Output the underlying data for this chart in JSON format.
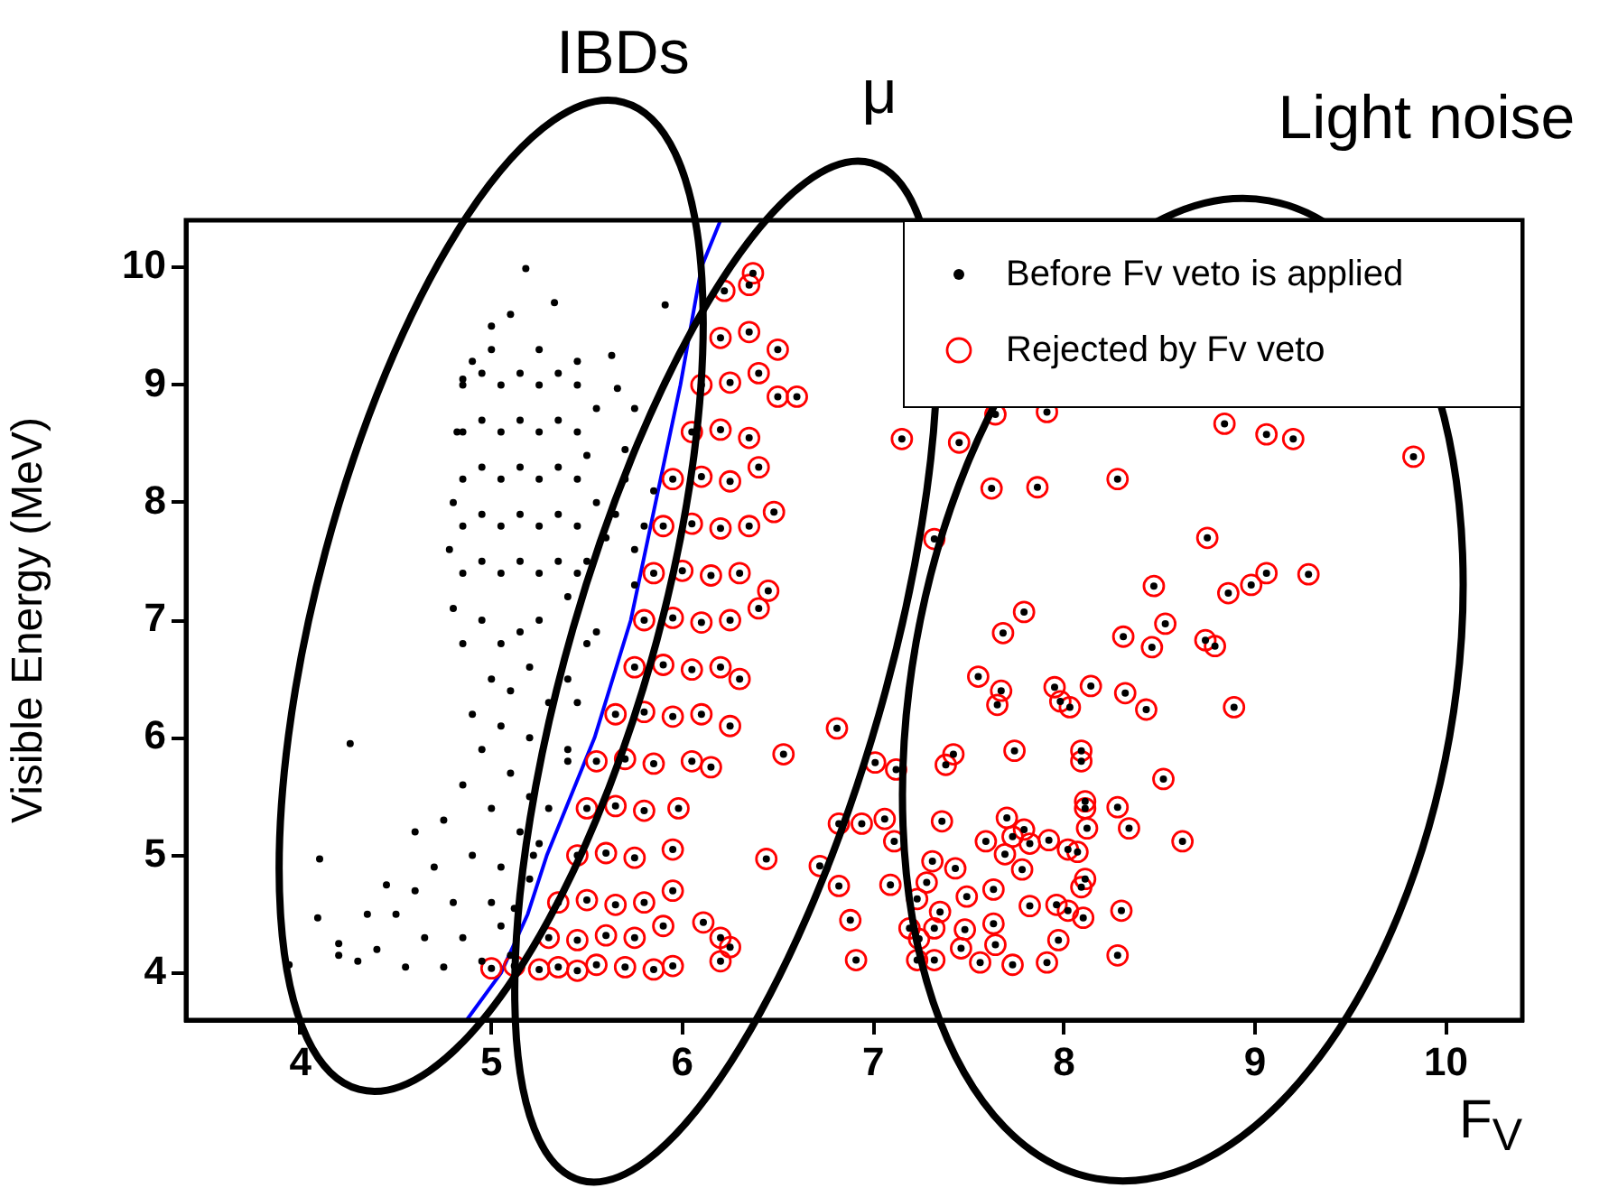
{
  "chart_data": {
    "type": "scatter",
    "xlabel": "F$_{V}$",
    "ylabel": "Visible Energy (MeV)",
    "annotations": [
      "IBDs",
      "μ",
      "Light noise"
    ],
    "xlim": [
      3.4,
      10.4
    ],
    "ylim": [
      3.6,
      10.4
    ],
    "xticks": [
      4,
      5,
      6,
      7,
      8,
      9,
      10
    ],
    "yticks": [
      4,
      5,
      6,
      7,
      8,
      9,
      10
    ],
    "grid": false,
    "legend": "top right",
    "series": [
      {
        "name": "Before Fv veto is applied",
        "color": "#000000",
        "marker": "circle",
        "x": [
          5.18,
          5.33,
          5.1,
          5.0,
          5.91,
          5.63,
          5.66,
          5.75,
          5.7,
          4.85,
          4.26,
          4.1,
          3.94,
          4.09,
          4.2,
          4.85,
          4.85,
          4.85,
          4.85,
          4.85,
          4.95,
          4.95,
          4.95,
          4.95,
          4.95,
          5.05,
          5.05,
          5.05,
          5.05,
          5.05,
          5.15,
          5.15,
          5.15,
          5.15,
          5.15,
          5.25,
          5.25,
          5.25,
          5.25,
          5.25,
          5.35,
          5.35,
          5.35,
          5.35,
          5.35,
          5.45,
          5.45,
          5.45,
          5.45,
          5.45,
          4.8,
          4.78,
          4.82,
          5.5,
          5.55,
          5.6,
          5.65,
          5.7,
          5.8,
          5.75,
          5.85,
          5.55,
          5.45,
          5.25,
          5.0,
          4.9,
          5.5,
          5.4,
          5.75,
          4.95,
          5.05,
          5.15,
          5.25,
          5.0,
          5.1,
          5.2,
          5.3,
          4.9,
          5.05,
          5.2,
          5.4,
          5.5,
          4.85,
          4.8,
          5.45,
          5.4,
          5.55,
          4.95,
          5.1,
          5.2,
          5.0,
          4.85,
          4.75,
          5.15,
          5.3,
          5.4,
          4.9,
          5.05,
          4.7,
          4.6,
          4.8,
          5.0,
          5.2,
          4.5,
          4.65,
          4.85,
          5.05,
          4.4,
          4.55,
          4.75,
          4.95,
          4.3,
          4.6,
          5.22,
          5.25,
          4.2,
          5.1,
          4.45,
          4.35,
          5.12,
          5.0,
          5.12,
          5.25,
          5.35,
          5.45,
          5.55,
          5.7,
          5.85,
          5.95,
          5.3,
          5.45,
          5.6,
          5.75,
          5.9,
          5.35,
          5.5,
          5.65,
          5.8,
          5.95,
          5.45,
          5.6,
          5.75,
          5.95,
          5.5,
          5.65,
          5.8,
          5.98,
          5.55,
          5.7,
          5.85,
          6.05,
          6.15,
          5.65,
          5.8,
          5.95,
          6.1,
          6.25,
          5.75,
          5.9,
          6.05,
          6.2,
          6.3,
          5.8,
          5.95,
          6.1,
          6.25,
          6.4,
          5.85,
          6.0,
          6.15,
          6.3,
          6.45,
          5.9,
          6.05,
          6.2,
          6.35,
          6.48,
          5.95,
          6.1,
          6.25,
          6.4,
          6.05,
          6.2,
          6.35,
          6.6,
          6.5,
          6.1,
          6.25,
          6.4,
          6.2,
          6.35,
          6.5,
          6.22,
          6.35,
          6.37,
          6.53,
          6.44,
          6.81,
          6.11,
          6.2,
          6.25,
          6.2,
          6.91,
          6.82,
          6.88,
          6.72,
          6.82,
          6.94,
          7.15,
          7.45,
          7.64,
          7.91,
          7.62,
          7.86,
          8.28,
          8.84,
          9.06,
          9.2,
          9.83,
          7.32,
          8.75,
          8.47,
          8.98,
          9.06,
          9.28,
          8.86,
          7.79,
          7.68,
          8.31,
          8.53,
          8.46,
          8.74,
          8.79,
          7.55,
          7.67,
          7.65,
          7.95,
          7.98,
          8.03,
          8.14,
          8.32,
          8.43,
          8.89,
          7.74,
          8.09,
          8.09,
          7.42,
          7.38,
          7.12,
          7.01,
          8.52,
          8.11,
          8.11,
          8.12,
          8.28,
          8.34,
          8.62,
          7.7,
          7.59,
          7.73,
          7.79,
          7.82,
          7.92,
          8.02,
          8.07,
          7.69,
          7.78,
          7.36,
          7.06,
          7.11,
          7.31,
          7.43,
          7.49,
          7.28,
          7.23,
          7.35,
          7.09,
          7.19,
          7.24,
          7.32,
          7.48,
          7.46,
          7.23,
          7.32,
          7.56,
          7.73,
          7.91,
          7.63,
          7.64,
          7.63,
          7.82,
          7.96,
          8.02,
          8.1,
          7.97,
          8.09,
          8.11,
          8.3,
          8.28
        ],
        "values": [
          9.99,
          9.7,
          9.6,
          9.5,
          9.68,
          9.25,
          8.97,
          8.8,
          8.45,
          9.05,
          5.95,
          4.97,
          4.07,
          4.47,
          4.25,
          7.4,
          7.8,
          8.2,
          8.6,
          9.0,
          7.5,
          7.9,
          8.3,
          8.7,
          9.1,
          7.4,
          7.8,
          8.2,
          8.6,
          9.0,
          7.5,
          7.9,
          8.3,
          8.7,
          9.1,
          7.4,
          7.8,
          8.2,
          8.6,
          9.0,
          7.5,
          7.9,
          8.3,
          8.7,
          9.1,
          7.4,
          7.8,
          8.2,
          8.6,
          9.0,
          8.0,
          7.6,
          8.6,
          8.4,
          8.0,
          7.7,
          7.9,
          8.2,
          7.8,
          7.6,
          8.1,
          8.8,
          9.2,
          9.3,
          9.3,
          9.2,
          7.5,
          7.2,
          7.3,
          7.0,
          6.8,
          6.9,
          7.0,
          6.5,
          6.4,
          6.6,
          6.3,
          6.2,
          6.1,
          6.0,
          6.5,
          6.8,
          6.8,
          7.1,
          6.3,
          5.9,
          6.9,
          5.9,
          5.7,
          5.5,
          5.4,
          5.6,
          5.3,
          5.2,
          5.4,
          5.8,
          5.0,
          4.9,
          4.9,
          4.7,
          4.6,
          4.6,
          4.8,
          4.5,
          4.3,
          4.3,
          4.4,
          4.2,
          4.05,
          4.05,
          4.1,
          4.1,
          5.2,
          5.0,
          5.1,
          4.15,
          4.15,
          4.75,
          4.5,
          4.55,
          4.04,
          4.06,
          4.03,
          4.05,
          4.02,
          4.07,
          4.05,
          4.03,
          4.06,
          4.3,
          4.28,
          4.32,
          4.3,
          4.4,
          4.6,
          4.62,
          4.58,
          4.6,
          4.7,
          5.0,
          5.02,
          4.98,
          5.05,
          5.4,
          5.42,
          5.38,
          5.4,
          5.8,
          5.82,
          5.78,
          5.8,
          5.75,
          6.2,
          6.22,
          6.18,
          6.2,
          6.1,
          6.6,
          6.62,
          6.58,
          6.6,
          6.5,
          7.0,
          7.02,
          6.98,
          7.0,
          7.1,
          7.4,
          7.42,
          7.38,
          7.4,
          7.25,
          7.8,
          7.82,
          7.78,
          7.8,
          7.92,
          8.2,
          8.22,
          8.18,
          8.3,
          8.6,
          8.62,
          8.55,
          8.9,
          8.9,
          9.0,
          9.02,
          9.1,
          9.4,
          9.45,
          9.3,
          9.8,
          9.85,
          9.95,
          5.86,
          4.97,
          6.08,
          4.43,
          4.3,
          4.22,
          4.1,
          4.11,
          4.74,
          4.45,
          4.91,
          5.27,
          5.27,
          8.54,
          8.51,
          8.75,
          8.77,
          8.12,
          8.13,
          8.2,
          8.67,
          8.58,
          8.54,
          8.39,
          7.69,
          7.7,
          7.29,
          7.3,
          7.4,
          7.39,
          7.23,
          7.07,
          6.89,
          6.86,
          6.97,
          6.77,
          6.83,
          6.78,
          6.52,
          6.4,
          6.28,
          6.43,
          6.31,
          6.26,
          6.44,
          6.38,
          6.24,
          6.26,
          5.89,
          5.89,
          5.8,
          5.86,
          5.77,
          5.73,
          5.79,
          5.65,
          5.46,
          5.4,
          5.23,
          5.41,
          5.23,
          5.12,
          5.32,
          5.12,
          5.16,
          5.22,
          5.1,
          5.13,
          5.05,
          5.03,
          5.01,
          4.88,
          5.29,
          5.31,
          5.12,
          4.95,
          4.89,
          4.65,
          4.77,
          4.63,
          4.52,
          4.75,
          4.38,
          4.29,
          4.38,
          4.37,
          4.21,
          4.11,
          4.11,
          4.09,
          4.07,
          4.09,
          4.42,
          4.24,
          4.71,
          4.57,
          4.58,
          4.53,
          4.47,
          4.28,
          4.73,
          4.8,
          4.53,
          4.15
        ]
      },
      {
        "name": "Rejected by Fv veto",
        "color": "#ff0000",
        "x": [
          5.0,
          5.12,
          5.25,
          5.35,
          5.45,
          5.55,
          5.7,
          5.85,
          5.95,
          5.3,
          5.45,
          5.6,
          5.75,
          5.9,
          5.35,
          5.5,
          5.65,
          5.8,
          5.95,
          5.45,
          5.6,
          5.75,
          5.95,
          5.5,
          5.65,
          5.8,
          5.98,
          5.55,
          5.7,
          5.85,
          6.05,
          6.15,
          5.65,
          5.8,
          5.95,
          6.1,
          6.25,
          5.75,
          5.9,
          6.05,
          6.2,
          6.3,
          5.8,
          5.95,
          6.1,
          6.25,
          6.4,
          5.85,
          6.0,
          6.15,
          6.3,
          6.45,
          5.9,
          6.05,
          6.2,
          6.35,
          6.48,
          5.95,
          6.1,
          6.25,
          6.4,
          6.05,
          6.2,
          6.35,
          6.6,
          6.5,
          6.1,
          6.25,
          6.4,
          6.2,
          6.35,
          6.5,
          6.22,
          6.35,
          6.37,
          6.53,
          6.44,
          6.81,
          6.11,
          6.2,
          6.25,
          6.2,
          6.91,
          6.82,
          6.88,
          6.72,
          6.82,
          6.94,
          7.15,
          7.45,
          7.64,
          7.91,
          7.62,
          7.86,
          8.28,
          8.84,
          9.06,
          9.2,
          9.83,
          7.32,
          8.75,
          8.47,
          8.98,
          9.06,
          9.28,
          8.86,
          7.79,
          7.68,
          8.31,
          8.53,
          8.46,
          8.74,
          8.79,
          7.55,
          7.67,
          7.65,
          7.95,
          7.98,
          8.03,
          8.14,
          8.32,
          8.43,
          8.89,
          7.74,
          8.09,
          8.09,
          7.42,
          7.38,
          7.12,
          7.01,
          8.52,
          8.11,
          8.11,
          8.12,
          8.28,
          8.34,
          8.62,
          7.7,
          7.59,
          7.73,
          7.79,
          7.82,
          7.92,
          8.02,
          8.07,
          7.69,
          7.78,
          7.36,
          7.06,
          7.11,
          7.31,
          7.43,
          7.49,
          7.28,
          7.23,
          7.35,
          7.09,
          7.19,
          7.24,
          7.32,
          7.48,
          7.46,
          7.23,
          7.32,
          7.56,
          7.73,
          7.91,
          7.63,
          7.64,
          7.63,
          7.82,
          7.96,
          8.02,
          8.1,
          7.97,
          8.09,
          8.11,
          8.3,
          8.28
        ],
        "values": [
          4.04,
          4.06,
          4.03,
          4.05,
          4.02,
          4.07,
          4.05,
          4.03,
          4.06,
          4.3,
          4.28,
          4.32,
          4.3,
          4.4,
          4.6,
          4.62,
          4.58,
          4.6,
          4.7,
          5.0,
          5.02,
          4.98,
          5.05,
          5.4,
          5.42,
          5.38,
          5.4,
          5.8,
          5.82,
          5.78,
          5.8,
          5.75,
          6.2,
          6.22,
          6.18,
          6.2,
          6.1,
          6.6,
          6.62,
          6.58,
          6.6,
          6.5,
          7.0,
          7.02,
          6.98,
          7.0,
          7.1,
          7.4,
          7.42,
          7.38,
          7.4,
          7.25,
          7.8,
          7.82,
          7.78,
          7.8,
          7.92,
          8.2,
          8.22,
          8.18,
          8.3,
          8.6,
          8.62,
          8.55,
          8.9,
          8.9,
          9.0,
          9.02,
          9.1,
          9.4,
          9.45,
          9.3,
          9.8,
          9.85,
          9.95,
          5.86,
          4.97,
          6.08,
          4.43,
          4.3,
          4.22,
          4.1,
          4.11,
          4.74,
          4.45,
          4.91,
          5.27,
          5.27,
          8.54,
          8.51,
          8.75,
          8.77,
          8.12,
          8.13,
          8.2,
          8.67,
          8.58,
          8.54,
          8.39,
          7.69,
          7.7,
          7.29,
          7.3,
          7.4,
          7.39,
          7.23,
          7.07,
          6.89,
          6.86,
          6.97,
          6.77,
          6.83,
          6.78,
          6.52,
          6.4,
          6.28,
          6.43,
          6.31,
          6.26,
          6.44,
          6.38,
          6.24,
          6.26,
          5.89,
          5.89,
          5.8,
          5.86,
          5.77,
          5.73,
          5.79,
          5.65,
          5.46,
          5.4,
          5.23,
          5.41,
          5.23,
          5.12,
          5.32,
          5.12,
          5.16,
          5.22,
          5.1,
          5.13,
          5.05,
          5.03,
          5.01,
          4.88,
          5.29,
          5.31,
          5.12,
          4.95,
          4.89,
          4.65,
          4.77,
          4.63,
          4.52,
          4.75,
          4.38,
          4.29,
          4.38,
          4.37,
          4.21,
          4.11,
          4.11,
          4.09,
          4.07,
          4.09,
          4.42,
          4.24,
          4.71,
          4.57,
          4.58,
          4.53,
          4.47,
          4.28,
          4.73,
          4.8,
          4.53,
          4.15
        ]
      },
      {
        "type": "line",
        "color": "#0000ff",
        "x": [
          4.87,
          5.05,
          5.19,
          5.29,
          5.54,
          5.73,
          5.86,
          5.99,
          6.1,
          6.2
        ],
        "values": [
          3.6,
          4,
          4.5,
          5,
          6,
          7,
          8,
          9,
          10,
          10.4
        ]
      }
    ]
  }
}
